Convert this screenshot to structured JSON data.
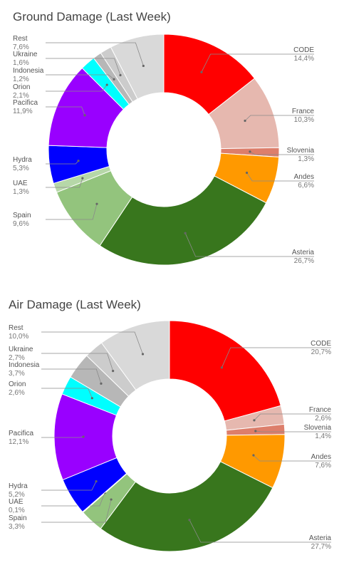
{
  "chart_data": [
    {
      "type": "pie",
      "title": "Ground Damage (Last Week)",
      "donut": true,
      "categories": [
        "CODE",
        "France",
        "Slovenia",
        "Andes",
        "Asteria",
        "Spain",
        "UAE",
        "Hydra",
        "Pacifica",
        "Orion",
        "Indonesia",
        "Ukraine",
        "Rest"
      ],
      "values": [
        14.4,
        10.3,
        1.3,
        6.6,
        26.7,
        9.6,
        1.3,
        5.3,
        11.9,
        2.1,
        1.2,
        1.6,
        7.6
      ],
      "value_labels": [
        "14,4%",
        "10,3%",
        "1,3%",
        "6,6%",
        "26,7%",
        "9,6%",
        "1,3%",
        "5,3%",
        "11,9%",
        "2,1%",
        "1,2%",
        "1,6%",
        "7,6%"
      ],
      "colors": [
        "#ff0000",
        "#e6b8af",
        "#dd7e6b",
        "#ff9900",
        "#38761d",
        "#93c47d",
        "#b6d7a8",
        "#0000ff",
        "#9900ff",
        "#00ffff",
        "#b7b7b7",
        "#cccccc",
        "#d9d9d9"
      ]
    },
    {
      "type": "pie",
      "title": "Air Damage (Last Week)",
      "donut": true,
      "categories": [
        "CODE",
        "France",
        "Slovenia",
        "Andes",
        "Asteria",
        "Spain",
        "UAE",
        "Hydra",
        "Pacifica",
        "Orion",
        "Indonesia",
        "Ukraine",
        "Rest"
      ],
      "values": [
        20.7,
        2.6,
        1.4,
        7.6,
        27.7,
        3.3,
        0.1,
        5.2,
        12.1,
        2.6,
        3.7,
        2.7,
        10.0
      ],
      "value_labels": [
        "20,7%",
        "2,6%",
        "1,4%",
        "7,6%",
        "27,7%",
        "3,3%",
        "0,1%",
        "5,2%",
        "12,1%",
        "2,6%",
        "3,7%",
        "2,7%",
        "10,0%"
      ],
      "colors": [
        "#ff0000",
        "#e6b8af",
        "#dd7e6b",
        "#ff9900",
        "#38761d",
        "#93c47d",
        "#b6d7a8",
        "#0000ff",
        "#9900ff",
        "#00ffff",
        "#b7b7b7",
        "#cccccc",
        "#d9d9d9"
      ]
    }
  ]
}
